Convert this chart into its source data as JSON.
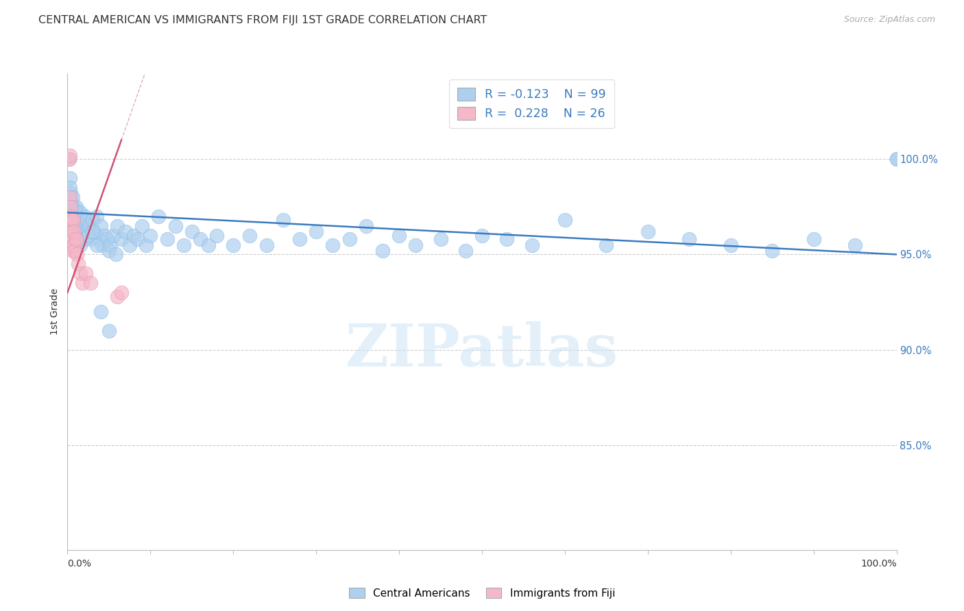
{
  "title": "CENTRAL AMERICAN VS IMMIGRANTS FROM FIJI 1ST GRADE CORRELATION CHART",
  "source": "Source: ZipAtlas.com",
  "ylabel": "1st Grade",
  "ytick_values": [
    0.85,
    0.9,
    0.95,
    1.0
  ],
  "ytick_labels": [
    "85.0%",
    "90.0%",
    "95.0%",
    "100.0%"
  ],
  "ylim": [
    0.795,
    1.045
  ],
  "xlim": [
    0.0,
    1.0
  ],
  "legend_blue_r": "R = -0.123",
  "legend_blue_n": "N = 99",
  "legend_pink_r": "R =  0.228",
  "legend_pink_n": "N = 26",
  "blue_color": "#aecfee",
  "blue_edge_color": "#7eb8e8",
  "pink_color": "#f4b8c8",
  "pink_edge_color": "#e888a8",
  "blue_line_color": "#3a7abf",
  "pink_line_color": "#d05070",
  "watermark": "ZIPatlas",
  "blue_trend_x0": 0.0,
  "blue_trend_x1": 1.0,
  "blue_trend_y0": 0.972,
  "blue_trend_y1": 0.95,
  "pink_trend_x0": 0.0,
  "pink_trend_x1": 0.065,
  "pink_trend_y0": 0.93,
  "pink_trend_y1": 1.01,
  "blue_scatter_x": [
    0.002,
    0.003,
    0.003,
    0.004,
    0.004,
    0.005,
    0.005,
    0.006,
    0.006,
    0.007,
    0.007,
    0.008,
    0.008,
    0.009,
    0.009,
    0.01,
    0.01,
    0.011,
    0.011,
    0.012,
    0.012,
    0.013,
    0.014,
    0.015,
    0.015,
    0.016,
    0.017,
    0.018,
    0.019,
    0.02,
    0.021,
    0.022,
    0.023,
    0.025,
    0.026,
    0.028,
    0.03,
    0.032,
    0.035,
    0.038,
    0.04,
    0.042,
    0.045,
    0.048,
    0.05,
    0.052,
    0.055,
    0.058,
    0.06,
    0.065,
    0.07,
    0.075,
    0.08,
    0.085,
    0.09,
    0.095,
    0.1,
    0.11,
    0.12,
    0.13,
    0.14,
    0.15,
    0.16,
    0.17,
    0.18,
    0.2,
    0.22,
    0.24,
    0.26,
    0.28,
    0.3,
    0.32,
    0.34,
    0.36,
    0.38,
    0.4,
    0.42,
    0.45,
    0.48,
    0.5,
    0.53,
    0.56,
    0.6,
    0.65,
    0.7,
    0.75,
    0.8,
    0.85,
    0.9,
    0.95,
    1.0,
    1.0,
    0.015,
    0.02,
    0.025,
    0.03,
    0.035,
    0.04,
    0.05
  ],
  "blue_scatter_y": [
    1.0,
    0.99,
    0.985,
    0.982,
    0.978,
    0.975,
    0.972,
    0.98,
    0.968,
    0.975,
    0.97,
    0.972,
    0.965,
    0.968,
    0.96,
    0.975,
    0.962,
    0.97,
    0.965,
    0.972,
    0.96,
    0.968,
    0.965,
    0.972,
    0.96,
    0.965,
    0.968,
    0.962,
    0.96,
    0.965,
    0.97,
    0.962,
    0.968,
    0.96,
    0.965,
    0.958,
    0.968,
    0.962,
    0.97,
    0.958,
    0.965,
    0.955,
    0.96,
    0.958,
    0.952,
    0.955,
    0.96,
    0.95,
    0.965,
    0.958,
    0.962,
    0.955,
    0.96,
    0.958,
    0.965,
    0.955,
    0.96,
    0.97,
    0.958,
    0.965,
    0.955,
    0.962,
    0.958,
    0.955,
    0.96,
    0.955,
    0.96,
    0.955,
    0.968,
    0.958,
    0.962,
    0.955,
    0.958,
    0.965,
    0.952,
    0.96,
    0.955,
    0.958,
    0.952,
    0.96,
    0.958,
    0.955,
    0.968,
    0.955,
    0.962,
    0.958,
    0.955,
    0.952,
    0.958,
    0.955,
    1.0,
    1.0,
    0.955,
    0.958,
    0.96,
    0.962,
    0.955,
    0.92,
    0.91
  ],
  "pink_scatter_x": [
    0.002,
    0.003,
    0.003,
    0.004,
    0.004,
    0.004,
    0.005,
    0.005,
    0.005,
    0.006,
    0.006,
    0.006,
    0.007,
    0.007,
    0.008,
    0.008,
    0.009,
    0.01,
    0.011,
    0.013,
    0.015,
    0.018,
    0.022,
    0.028,
    0.06,
    0.065
  ],
  "pink_scatter_y": [
    1.0,
    1.002,
    0.98,
    0.975,
    0.97,
    0.965,
    0.968,
    0.962,
    0.958,
    0.96,
    0.955,
    0.952,
    0.968,
    0.958,
    0.962,
    0.955,
    0.952,
    0.958,
    0.95,
    0.945,
    0.94,
    0.935,
    0.94,
    0.935,
    0.928,
    0.93
  ]
}
